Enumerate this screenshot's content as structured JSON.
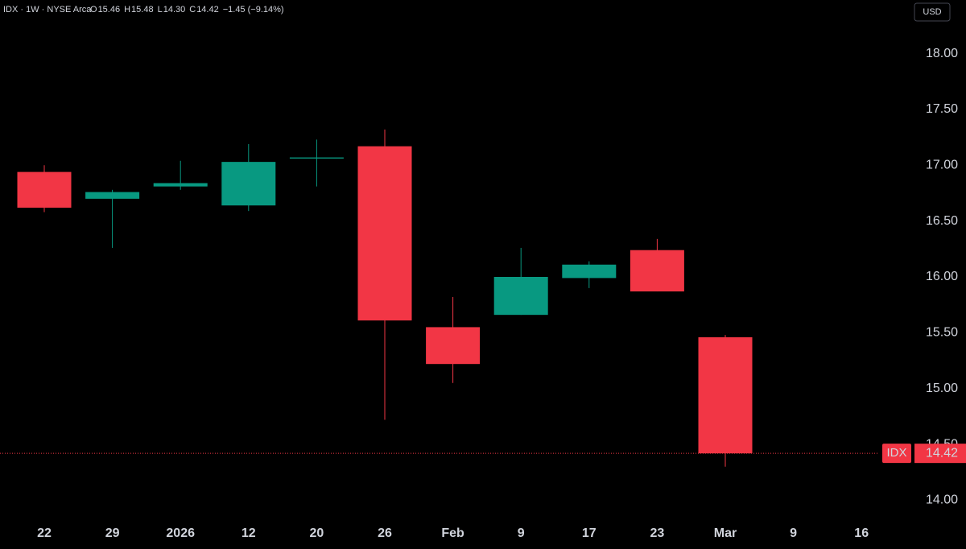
{
  "chart_data": {
    "type": "candlestick",
    "symbol": "IDX · 1W · NYSE Arca",
    "header": {
      "o_label": "O",
      "o": "15.46",
      "h_label": "H",
      "h": "15.48",
      "l_label": "L",
      "l": "14.30",
      "c_label": "C",
      "c": "14.42",
      "change": "−1.45 (−9.14%)"
    },
    "currency": "USD",
    "price_tag": "IDX",
    "categories": [
      "22",
      "29",
      "2026",
      "12",
      "20",
      "26",
      "Feb",
      "9",
      "17",
      "23",
      "Mar",
      "9",
      "16"
    ],
    "open": [
      16.94,
      16.7,
      16.81,
      16.64,
      17.06,
      17.17,
      15.55,
      15.66,
      15.99,
      16.24,
      15.46,
      null,
      null
    ],
    "high": [
      17.0,
      16.78,
      17.04,
      17.19,
      17.23,
      17.32,
      15.82,
      16.26,
      16.14,
      16.34,
      15.48,
      null,
      null
    ],
    "low": [
      16.58,
      16.26,
      16.78,
      16.59,
      16.81,
      14.72,
      15.05,
      15.66,
      15.9,
      15.87,
      14.3,
      null,
      null
    ],
    "close": [
      16.62,
      16.76,
      16.84,
      17.03,
      17.07,
      15.61,
      15.22,
      16.0,
      16.11,
      15.87,
      14.42,
      null,
      null
    ],
    "up_color": "#089981",
    "down_color": "#f23645",
    "ylim": [
      13.83,
      18.48
    ],
    "yticks": [
      {
        "value": 14,
        "label": "14.00"
      },
      {
        "value": 14.5,
        "label": "14.50"
      },
      {
        "value": 15,
        "label": "15.00"
      },
      {
        "value": 15.5,
        "label": "15.50"
      },
      {
        "value": 16,
        "label": "16.00"
      },
      {
        "value": 16.5,
        "label": "16.50"
      },
      {
        "value": 17,
        "label": "17.00"
      },
      {
        "value": 17.5,
        "label": "17.50"
      },
      {
        "value": 18,
        "label": "18.00"
      }
    ]
  }
}
